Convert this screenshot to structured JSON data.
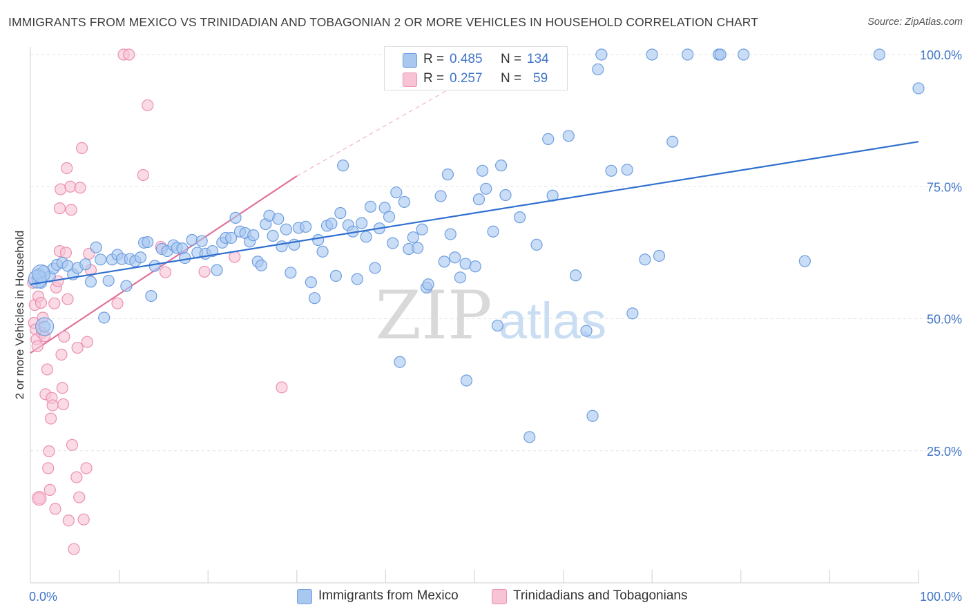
{
  "title": "IMMIGRANTS FROM MEXICO VS TRINIDADIAN AND TOBAGONIAN 2 OR MORE VEHICLES IN HOUSEHOLD CORRELATION CHART",
  "source": "Source: ZipAtlas.com",
  "watermark": {
    "zip": "ZIP",
    "atlas": "atlas"
  },
  "legend": {
    "rows": [
      {
        "r_label": "R =",
        "r_value": "0.485",
        "n_label": "N =",
        "n_value": "134"
      },
      {
        "r_label": "R =",
        "r_value": "0.257",
        "n_label": "N =",
        "n_value": "59"
      }
    ]
  },
  "colors": {
    "blue_fill": "#a9c8f0",
    "blue_stroke": "#6d9ee0",
    "blue_line": "#2f6fcf",
    "pink_fill": "#f7c3d5",
    "pink_stroke": "#ec8fb0",
    "pink_line": "#e0709a",
    "axis_text": "#3f74c8",
    "grid": "#e2e2e2"
  },
  "chart_data": {
    "type": "scatter",
    "title": "IMMIGRANTS FROM MEXICO VS TRINIDADIAN AND TOBAGONIAN 2 OR MORE VEHICLES IN HOUSEHOLD CORRELATION CHART",
    "xlabel": "",
    "ylabel": "2 or more Vehicles in Household",
    "xlim": [
      0,
      100
    ],
    "ylim": [
      0,
      100
    ],
    "x_tick_labels": [
      "0.0%",
      "100.0%"
    ],
    "y_tick_labels": [
      "25.0%",
      "50.0%",
      "75.0%",
      "100.0%"
    ],
    "y_ticks": [
      25,
      50,
      75,
      100
    ],
    "grid": true,
    "legend_position": "bottom-center",
    "series": [
      {
        "name": "Immigrants from Mexico",
        "color": "#a9c8f0",
        "trendline": {
          "x": [
            0,
            100
          ],
          "y": [
            56.5,
            83.5
          ]
        },
        "points": [
          [
            0.8,
            57.5
          ],
          [
            1.0,
            58.5
          ],
          [
            1.2,
            56.8
          ],
          [
            1.5,
            59.0
          ],
          [
            1.6,
            48.5
          ],
          [
            2.2,
            58.0
          ],
          [
            2.6,
            59.5
          ],
          [
            3.0,
            60.2
          ],
          [
            3.6,
            60.6
          ],
          [
            4.2,
            60.0
          ],
          [
            4.8,
            58.4
          ],
          [
            5.3,
            59.6
          ],
          [
            6.2,
            60.3
          ],
          [
            6.8,
            57.0
          ],
          [
            7.4,
            63.5
          ],
          [
            7.9,
            61.2
          ],
          [
            8.3,
            50.2
          ],
          [
            8.8,
            57.2
          ],
          [
            9.2,
            61.2
          ],
          [
            9.8,
            62.1
          ],
          [
            10.3,
            61.3
          ],
          [
            10.8,
            56.2
          ],
          [
            11.2,
            61.3
          ],
          [
            11.8,
            60.9
          ],
          [
            12.4,
            61.6
          ],
          [
            12.8,
            64.4
          ],
          [
            13.2,
            64.5
          ],
          [
            13.6,
            54.3
          ],
          [
            14.0,
            60.0
          ],
          [
            14.8,
            63.2
          ],
          [
            15.4,
            62.8
          ],
          [
            16.1,
            63.9
          ],
          [
            16.5,
            63.4
          ],
          [
            17.1,
            63.3
          ],
          [
            17.4,
            61.5
          ],
          [
            18.2,
            64.9
          ],
          [
            18.8,
            62.5
          ],
          [
            19.3,
            64.7
          ],
          [
            19.7,
            62.3
          ],
          [
            20.5,
            62.8
          ],
          [
            21.0,
            59.2
          ],
          [
            21.6,
            64.4
          ],
          [
            22.0,
            65.3
          ],
          [
            22.6,
            65.3
          ],
          [
            23.1,
            69.1
          ],
          [
            23.6,
            66.5
          ],
          [
            24.2,
            66.2
          ],
          [
            24.7,
            64.6
          ],
          [
            25.1,
            65.8
          ],
          [
            25.6,
            60.8
          ],
          [
            26.0,
            60.1
          ],
          [
            26.5,
            67.9
          ],
          [
            26.9,
            69.5
          ],
          [
            27.3,
            65.7
          ],
          [
            27.9,
            68.9
          ],
          [
            28.3,
            63.7
          ],
          [
            28.8,
            66.9
          ],
          [
            29.3,
            58.7
          ],
          [
            29.7,
            64.0
          ],
          [
            30.2,
            67.2
          ],
          [
            31.0,
            67.4
          ],
          [
            31.6,
            56.9
          ],
          [
            32.0,
            53.9
          ],
          [
            32.4,
            64.9
          ],
          [
            32.9,
            62.7
          ],
          [
            33.4,
            67.6
          ],
          [
            33.9,
            68.0
          ],
          [
            34.4,
            58.1
          ],
          [
            34.9,
            70.0
          ],
          [
            35.2,
            79.0
          ],
          [
            35.8,
            67.7
          ],
          [
            36.3,
            66.5
          ],
          [
            36.8,
            57.5
          ],
          [
            37.3,
            68.1
          ],
          [
            37.8,
            65.5
          ],
          [
            38.3,
            71.2
          ],
          [
            38.8,
            59.6
          ],
          [
            39.3,
            67.1
          ],
          [
            39.9,
            71.0
          ],
          [
            40.4,
            69.3
          ],
          [
            40.8,
            64.3
          ],
          [
            41.2,
            73.9
          ],
          [
            41.6,
            41.8
          ],
          [
            42.1,
            72.1
          ],
          [
            42.6,
            63.2
          ],
          [
            43.1,
            65.4
          ],
          [
            43.6,
            63.4
          ],
          [
            44.1,
            66.9
          ],
          [
            44.6,
            55.9
          ],
          [
            44.8,
            56.5
          ],
          [
            46.2,
            73.2
          ],
          [
            46.6,
            60.8
          ],
          [
            47.0,
            77.3
          ],
          [
            47.3,
            66.0
          ],
          [
            47.8,
            61.6
          ],
          [
            48.4,
            57.8
          ],
          [
            49.0,
            60.4
          ],
          [
            49.1,
            38.3
          ],
          [
            50.1,
            59.9
          ],
          [
            50.5,
            72.6
          ],
          [
            50.9,
            78.0
          ],
          [
            51.3,
            74.6
          ],
          [
            52.1,
            66.5
          ],
          [
            52.6,
            48.7
          ],
          [
            53.0,
            79.0
          ],
          [
            53.5,
            73.4
          ],
          [
            55.1,
            69.2
          ],
          [
            55.6,
            100.0
          ],
          [
            56.2,
            27.6
          ],
          [
            57.0,
            64.0
          ],
          [
            58.3,
            84.0
          ],
          [
            58.8,
            73.3
          ],
          [
            60.6,
            84.6
          ],
          [
            61.4,
            58.2
          ],
          [
            62.6,
            47.7
          ],
          [
            63.3,
            31.6
          ],
          [
            63.9,
            97.2
          ],
          [
            64.3,
            100.0
          ],
          [
            65.4,
            78.0
          ],
          [
            67.2,
            78.2
          ],
          [
            67.8,
            51.0
          ],
          [
            69.2,
            61.2
          ],
          [
            70.0,
            100.0
          ],
          [
            70.8,
            61.9
          ],
          [
            72.3,
            83.5
          ],
          [
            74.0,
            100.0
          ],
          [
            77.5,
            100.0
          ],
          [
            77.7,
            100.0
          ],
          [
            80.3,
            100.0
          ],
          [
            87.2,
            60.9
          ],
          [
            95.6,
            100.0
          ],
          [
            100.0,
            93.6
          ]
        ]
      },
      {
        "name": "Trinidadians and Tobagonians",
        "color": "#f7c3d5",
        "trendline": {
          "x": [
            0,
            30
          ],
          "y": [
            43.5,
            77.0
          ]
        },
        "trendline_dashed_extension": {
          "x": [
            30,
            54
          ],
          "y": [
            77.0,
            100
          ]
        },
        "points": [
          [
            0.3,
            56.8
          ],
          [
            0.4,
            49.2
          ],
          [
            0.5,
            52.6
          ],
          [
            0.6,
            48.0
          ],
          [
            0.7,
            46.1
          ],
          [
            0.8,
            44.8
          ],
          [
            0.9,
            54.2
          ],
          [
            1.0,
            16.0
          ],
          [
            1.2,
            53.0
          ],
          [
            1.3,
            47.3
          ],
          [
            1.4,
            50.2
          ],
          [
            1.6,
            46.7
          ],
          [
            1.7,
            35.7
          ],
          [
            1.9,
            40.4
          ],
          [
            2.0,
            21.7
          ],
          [
            2.1,
            24.9
          ],
          [
            2.2,
            17.6
          ],
          [
            2.3,
            31.1
          ],
          [
            2.4,
            35.0
          ],
          [
            2.5,
            33.6
          ],
          [
            2.7,
            52.9
          ],
          [
            2.8,
            14.0
          ],
          [
            2.9,
            55.9
          ],
          [
            3.1,
            57.1
          ],
          [
            3.3,
            62.8
          ],
          [
            3.3,
            70.9
          ],
          [
            3.4,
            74.5
          ],
          [
            3.5,
            43.2
          ],
          [
            3.6,
            36.9
          ],
          [
            3.7,
            33.8
          ],
          [
            3.8,
            46.6
          ],
          [
            4.0,
            62.5
          ],
          [
            4.1,
            78.5
          ],
          [
            4.2,
            53.7
          ],
          [
            4.3,
            11.8
          ],
          [
            4.5,
            75.0
          ],
          [
            4.6,
            70.6
          ],
          [
            4.7,
            26.1
          ],
          [
            4.9,
            6.4
          ],
          [
            5.2,
            20.0
          ],
          [
            5.3,
            44.5
          ],
          [
            5.5,
            16.2
          ],
          [
            5.6,
            74.8
          ],
          [
            5.8,
            82.3
          ],
          [
            6.0,
            12.0
          ],
          [
            6.3,
            21.7
          ],
          [
            6.4,
            45.6
          ],
          [
            6.6,
            62.3
          ],
          [
            6.8,
            59.2
          ],
          [
            9.8,
            52.9
          ],
          [
            10.5,
            100.0
          ],
          [
            11.1,
            100.0
          ],
          [
            12.7,
            77.2
          ],
          [
            13.2,
            90.4
          ],
          [
            14.7,
            63.6
          ],
          [
            15.2,
            58.8
          ],
          [
            19.6,
            58.9
          ],
          [
            23.0,
            61.7
          ],
          [
            28.3,
            37.0
          ]
        ]
      }
    ]
  }
}
